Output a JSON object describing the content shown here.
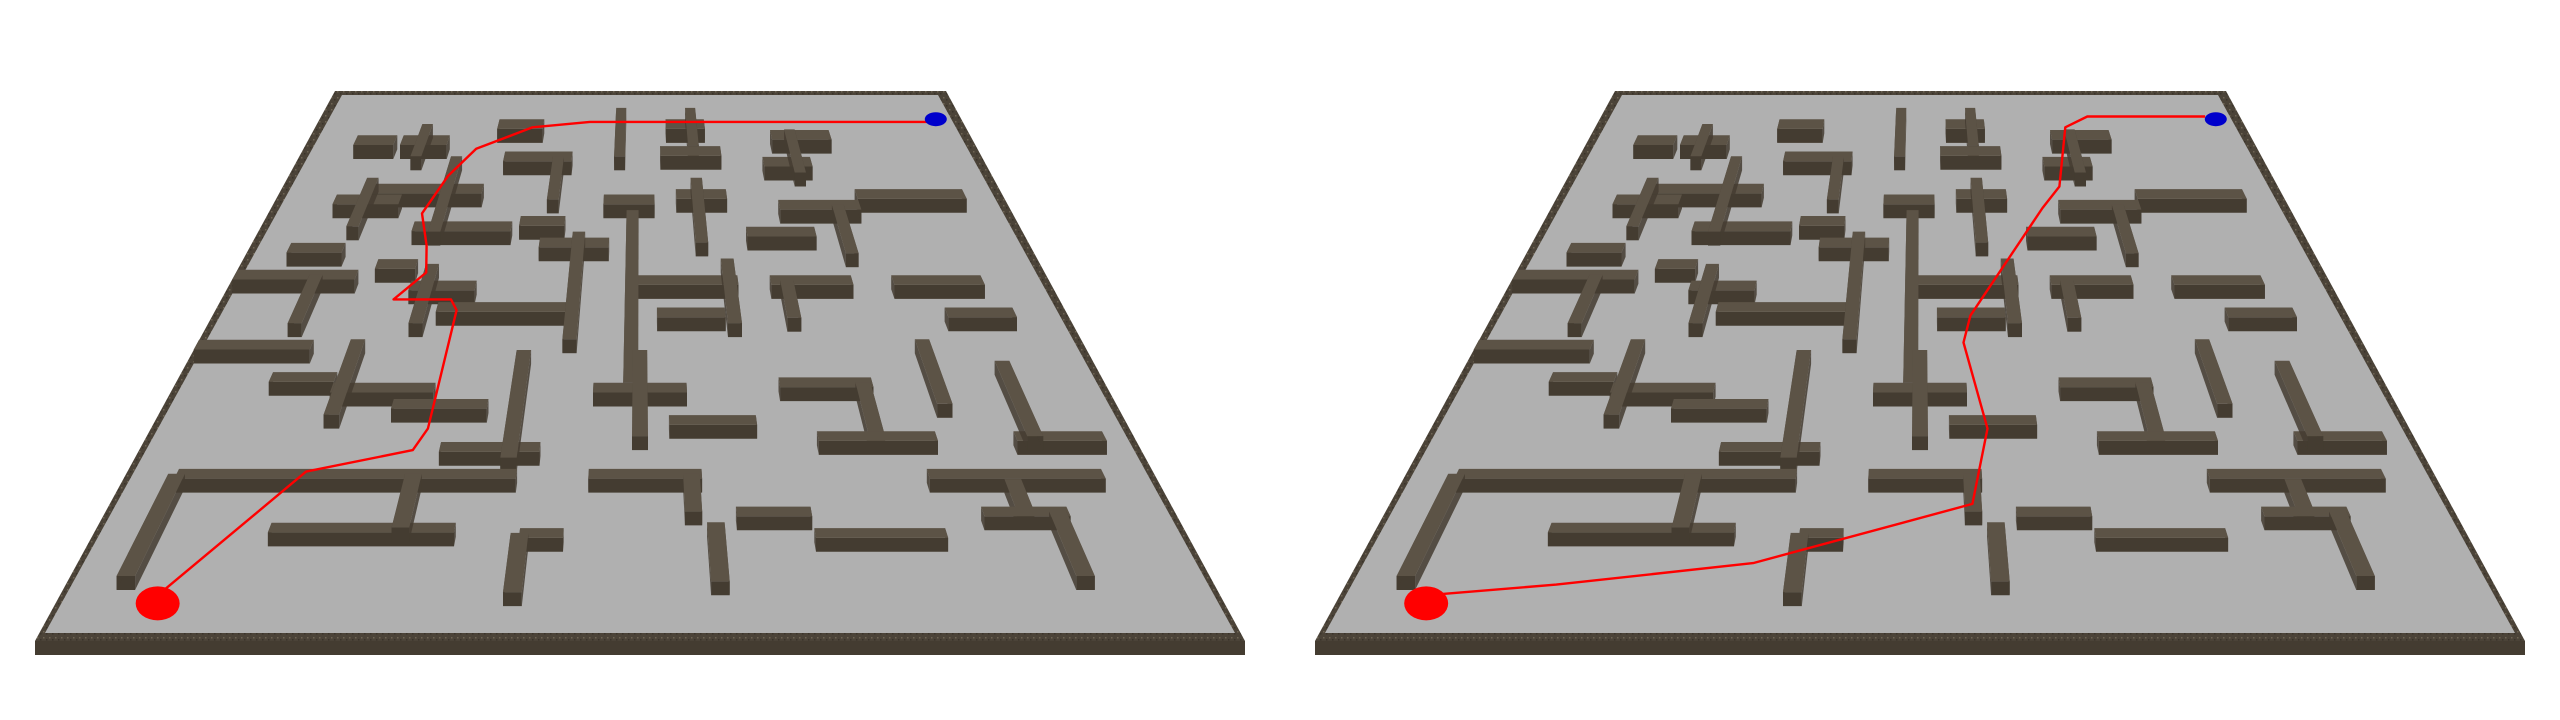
{
  "scene": {
    "colors": {
      "background": "#ffffff",
      "floor": "#b0b0b0",
      "wall_top": "#5c5346",
      "wall_side": "#443c31",
      "frame_outer": "#4b4338",
      "path": "#ff0000",
      "start_marker": "#ff0000",
      "goal_marker": "#0000cc"
    },
    "panels": [
      {
        "id": "left",
        "path_variant": "winding-left-route"
      },
      {
        "id": "right",
        "path_variant": "direct-center-route"
      }
    ]
  }
}
